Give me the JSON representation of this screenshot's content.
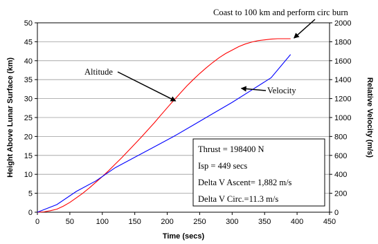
{
  "chart_data": {
    "type": "line",
    "xlabel": "Time (secs)",
    "ylabel_left": "Height Above Lunar Surface (km)",
    "ylabel_right": "Relative Velocity (m/s)",
    "xlim": [
      0,
      450
    ],
    "ylim_left": [
      0,
      50
    ],
    "ylim_right": [
      0,
      2000
    ],
    "x_ticks": [
      0,
      50,
      100,
      150,
      200,
      250,
      300,
      350,
      400,
      450
    ],
    "y_left_ticks": [
      0,
      5,
      10,
      15,
      20,
      25,
      30,
      35,
      40,
      45,
      50
    ],
    "y_right_ticks": [
      0,
      200,
      400,
      600,
      800,
      1000,
      1200,
      1400,
      1600,
      1800,
      2000
    ],
    "grid": "horizontal",
    "series": [
      {
        "name": "Altitude",
        "axis": "left",
        "color": "#ff0000",
        "x": [
          0,
          10,
          20,
          30,
          40,
          50,
          60,
          70,
          80,
          90,
          100,
          110,
          120,
          130,
          140,
          150,
          160,
          170,
          180,
          190,
          200,
          210,
          220,
          230,
          240,
          250,
          260,
          270,
          280,
          290,
          300,
          310,
          320,
          330,
          340,
          350,
          360,
          370,
          380,
          390
        ],
        "y": [
          0,
          0.1,
          0.4,
          0.8,
          1.6,
          2.6,
          3.8,
          5.0,
          6.4,
          7.9,
          9.4,
          11.0,
          12.7,
          14.4,
          16.2,
          18.0,
          19.8,
          21.7,
          23.6,
          25.6,
          27.6,
          29.5,
          31.4,
          33.3,
          35.0,
          36.6,
          38.1,
          39.5,
          40.8,
          41.9,
          42.8,
          43.7,
          44.4,
          44.9,
          45.3,
          45.5,
          45.7,
          45.8,
          45.8,
          45.8
        ]
      },
      {
        "name": "Velocity",
        "axis": "right",
        "color": "#0000ff",
        "x": [
          0,
          30,
          60,
          90,
          120,
          150,
          180,
          210,
          240,
          270,
          300,
          330,
          360,
          390
        ],
        "y": [
          0,
          80,
          220,
          330,
          470,
          580,
          690,
          800,
          920,
          1040,
          1160,
          1290,
          1420,
          1665
        ]
      }
    ],
    "annotations": [
      {
        "id": "altitude_label",
        "text": "Altitude",
        "points_to": {
          "x": 215,
          "y_left": 29
        }
      },
      {
        "id": "velocity_label",
        "text": "Velocity",
        "points_to": {
          "x": 310,
          "y_right": 1300
        }
      },
      {
        "id": "coast_label",
        "text": "Coast to 100 km and perform circ burn",
        "points_to": {
          "x": 390,
          "y_left": 45.8
        }
      }
    ],
    "text_box": [
      "Thrust = 198400 N",
      "Isp = 449 secs",
      "Delta V Ascent= 1,882 m/s",
      "Delta V Circ.=11.3 m/s"
    ]
  }
}
